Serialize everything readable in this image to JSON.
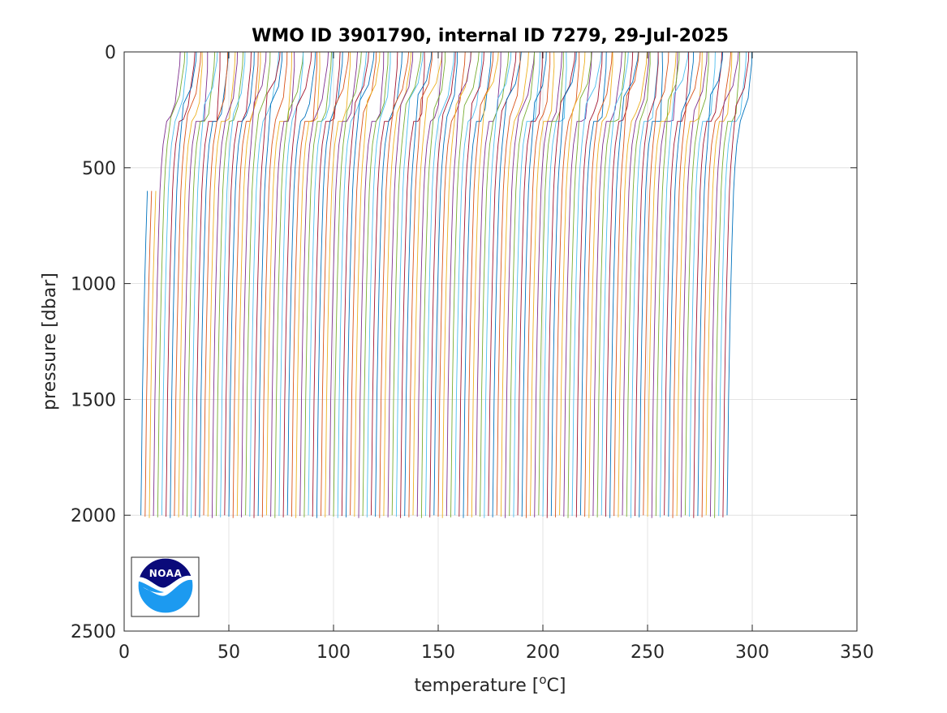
{
  "chart_data": {
    "type": "line",
    "title": "WMO ID 3901790, internal ID 7279, 29-Jul-2025",
    "xlabel": "temperature [",
    "xlabel_sup": "o",
    "xlabel_tail": "C]",
    "ylabel": "pressure [dbar]",
    "xlim": [
      0,
      350
    ],
    "ylim": [
      0,
      2500
    ],
    "y_reversed": true,
    "grid": true,
    "x_ticks": [
      0,
      50,
      100,
      150,
      200,
      250,
      300,
      350
    ],
    "y_ticks": [
      0,
      500,
      1000,
      1500,
      2000,
      2500
    ],
    "series_pattern": "waterfall (profiles offset by 2 each)",
    "n_profiles": 141,
    "profile_offset": 2,
    "base_profile": {
      "pressure": [
        0,
        50,
        100,
        150,
        200,
        250,
        300,
        400,
        500,
        600,
        800,
        1000,
        1200,
        1500,
        1800,
        2000
      ],
      "temperature": [
        20.5,
        20.3,
        19.6,
        18.9,
        18.3,
        16.3,
        14.3,
        12.6,
        11.7,
        11.1,
        10.4,
        9.8,
        9.3,
        8.7,
        8.3,
        8.0
      ]
    },
    "series_colors": [
      "#0072BD",
      "#D95319",
      "#EDB120",
      "#7E2F8E",
      "#77AC30",
      "#4DBEEE",
      "#A2142F"
    ]
  },
  "logo": {
    "text": "NOAA",
    "top_color": "#0A0A7A",
    "bottom_color": "#1C9AF0"
  }
}
